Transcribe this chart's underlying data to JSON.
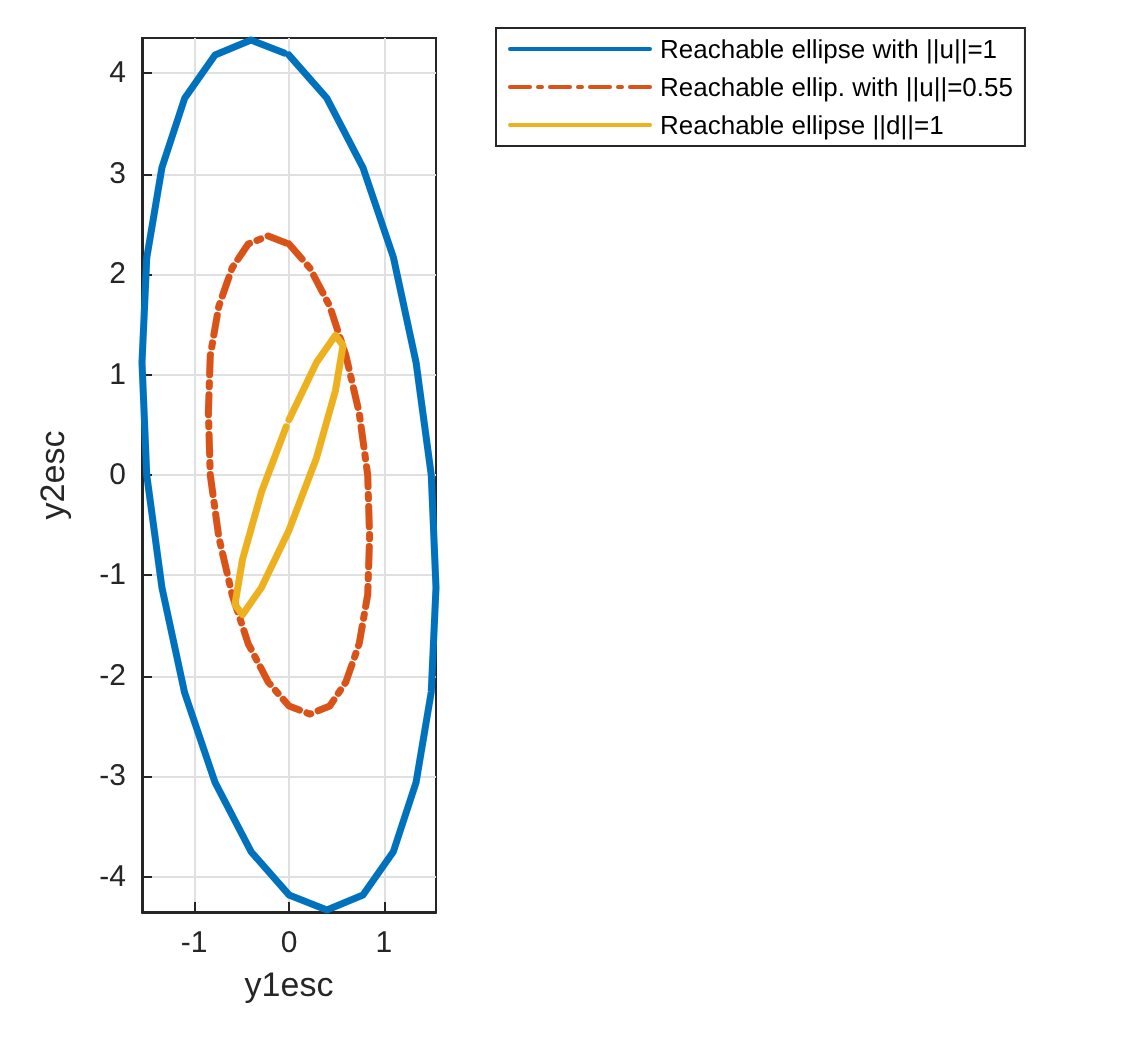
{
  "chart_data": {
    "type": "line",
    "xlabel": "y1esc",
    "ylabel": "y2esc",
    "xlim": [
      -1.55,
      1.55
    ],
    "ylim": [
      -4.35,
      4.35
    ],
    "xticks": [
      -1,
      0,
      1
    ],
    "yticks": [
      -4,
      -3,
      -2,
      -1,
      0,
      1,
      2,
      3,
      4
    ],
    "grid": true,
    "legend": "top right",
    "marker": "none",
    "series": [
      {
        "name": "Reachable ellipse with ||u||=1",
        "color": "#0072bd",
        "line_style": "solid",
        "x": [
          0,
          0.4,
          0.78,
          1.1,
          1.34,
          1.5,
          1.55,
          1.5,
          1.34,
          1.1,
          0.78,
          0.4,
          0,
          -0.4,
          -0.78,
          -1.1,
          -1.34,
          -1.5,
          -1.55,
          -1.5,
          -1.34,
          -1.1,
          -0.78,
          -0.4,
          -0.05
        ],
        "values": [
          4.18,
          3.75,
          3.06,
          2.17,
          1.12,
          0,
          -1.12,
          -2.16,
          -3.06,
          -3.75,
          -4.18,
          -4.33,
          -4.18,
          -3.75,
          -3.06,
          -2.17,
          -1.12,
          0,
          1.12,
          2.16,
          3.06,
          3.75,
          4.18,
          4.33,
          4.2
        ]
      },
      {
        "name": "Reachable ellip. with ||u||=0.55",
        "color": "#d95319",
        "line_style": "dashed",
        "x": [
          0,
          0.22,
          0.43,
          0.6,
          0.74,
          0.83,
          0.85,
          0.83,
          0.74,
          0.6,
          0.43,
          0.22,
          0,
          -0.22,
          -0.43,
          -0.6,
          -0.74,
          -0.83,
          -0.85,
          -0.83,
          -0.74,
          -0.6,
          -0.43,
          -0.22,
          -0.03
        ],
        "values": [
          2.3,
          2.06,
          1.68,
          1.19,
          0.62,
          0,
          -0.62,
          -1.19,
          -1.68,
          -2.06,
          -2.3,
          -2.38,
          -2.3,
          -2.06,
          -1.68,
          -1.19,
          -0.62,
          0,
          0.62,
          1.19,
          1.68,
          2.06,
          2.3,
          2.38,
          2.31
        ]
      },
      {
        "name": "Reachable ellipse ||d||=1",
        "color": "#edb120",
        "line_style": "solid",
        "x": [
          0,
          0.29,
          0.49,
          0.57,
          0.49,
          0.29,
          0,
          -0.29,
          -0.49,
          -0.57,
          -0.49,
          -0.29,
          -0.03
        ],
        "values": [
          0.55,
          1.12,
          1.39,
          1.29,
          0.84,
          0.17,
          -0.55,
          -1.12,
          -1.39,
          -1.29,
          -0.84,
          -0.17,
          0.48
        ]
      }
    ]
  }
}
